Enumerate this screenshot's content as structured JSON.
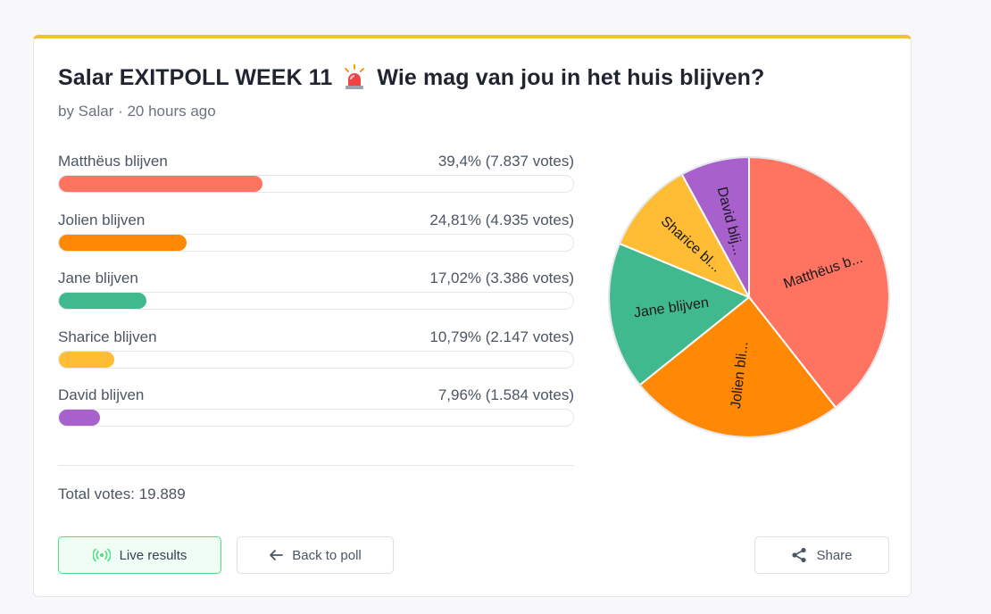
{
  "poll": {
    "title_part1": "Salar EXITPOLL WEEK 11",
    "title_part2": "Wie mag van jou in het huis blijven?",
    "byline": "by Salar · 20 hours ago",
    "total_votes": "Total votes: 19.889"
  },
  "options": [
    {
      "label": "Matthëus blijven",
      "stat": "39,4% (7.837 votes)",
      "percent": 39.4,
      "color": "#ff7361",
      "pie_label": "Matthëus b..."
    },
    {
      "label": "Jolien blijven",
      "stat": "24,81% (4.935 votes)",
      "percent": 24.81,
      "color": "#ff8805",
      "pie_label": "Jolien bli..."
    },
    {
      "label": "Jane blijven",
      "stat": "17,02% (3.386 votes)",
      "percent": 17.02,
      "color": "#40b98f",
      "pie_label": "Jane blijven"
    },
    {
      "label": "Sharice blijven",
      "stat": "10,79% (2.147 votes)",
      "percent": 10.79,
      "color": "#ffbd35",
      "pie_label": "Sharice bl..."
    },
    {
      "label": "David blijven",
      "stat": "7,96% (1.584 votes)",
      "percent": 7.96,
      "color": "#a860cc",
      "pie_label": "David blij..."
    }
  ],
  "buttons": {
    "live": "Live results",
    "back": "Back to poll",
    "share": "Share"
  },
  "icons": {
    "title": "siren-icon",
    "live": "broadcast-icon",
    "back": "arrow-left-icon",
    "share": "share-icon"
  },
  "chart_data": {
    "type": "pie",
    "categories": [
      "Matthëus blijven",
      "Jolien blijven",
      "Jane blijven",
      "Sharice blijven",
      "David blijven"
    ],
    "values": [
      39.4,
      24.81,
      17.02,
      10.79,
      7.96
    ],
    "slice_labels": [
      "Matthëus b...",
      "Jolien bli...",
      "Jane blijven",
      "Sharice bl...",
      "David blij..."
    ],
    "colors": [
      "#ff7361",
      "#ff8805",
      "#40b98f",
      "#ffbd35",
      "#a860cc"
    ]
  }
}
